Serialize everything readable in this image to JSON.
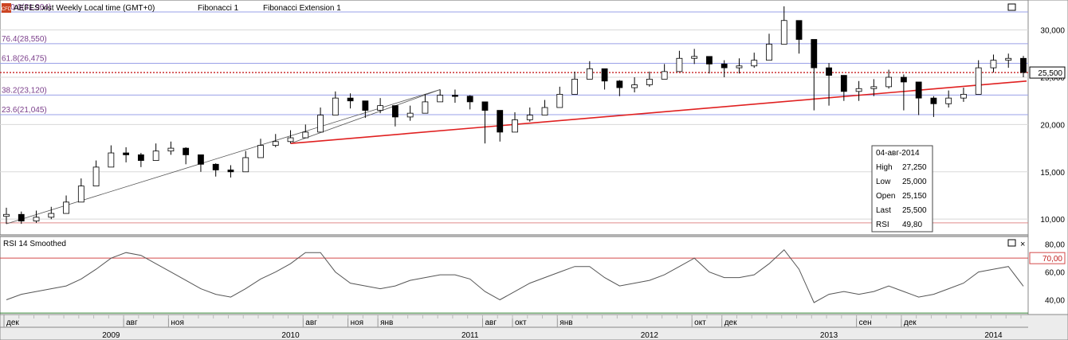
{
  "header": {
    "badge": "CFD",
    "title": "AEFES:xist Weekly Local time (GMT+0)",
    "fibonacci": "Fibonacci 1",
    "fib_extension": "Fibonacci Extension 1"
  },
  "rsi_header": {
    "title": "RSI 14 Smoothed"
  },
  "colors": {
    "candle_up": "#ffffff",
    "candle_down": "#000000",
    "trendline": "#e02020",
    "rsi_line": "#555555",
    "rsi_level": "#d44a4a",
    "fib_line": "#9aa0e8",
    "price_marker": "#cc3333"
  },
  "chart_data": [
    {
      "type": "candlestick",
      "title": "AEFES:xist Weekly",
      "ylim": [
        8500,
        33000
      ],
      "y_ticks": [
        "10,000",
        "15,000",
        "20,000",
        "25,000",
        "30,000"
      ],
      "y_tick_values": [
        10000,
        15000,
        20000,
        25000,
        30000
      ],
      "last_price_label": "25,500",
      "last_price": 25500,
      "fib_levels": [
        {
          "label": "100.0(31,904)",
          "value": 31904
        },
        {
          "label": "76.4(28,550)",
          "value": 28550
        },
        {
          "label": "61.8(26,475)",
          "value": 26475
        },
        {
          "label": "38.2(23,120)",
          "value": 23120
        },
        {
          "label": "23.6(21,045)",
          "value": 21045
        }
      ],
      "series": {
        "x": [
          "2008-12",
          "2009-01",
          "2009-02",
          "2009-03",
          "2009-04",
          "2009-05",
          "2009-06",
          "2009-07",
          "2009-08",
          "2009-09",
          "2009-10",
          "2009-11",
          "2009-12",
          "2010-01",
          "2010-02",
          "2010-03",
          "2010-04",
          "2010-05",
          "2010-06",
          "2010-07",
          "2010-08",
          "2010-09",
          "2010-10",
          "2010-11",
          "2010-12",
          "2011-01",
          "2011-02",
          "2011-03",
          "2011-04",
          "2011-05",
          "2011-06",
          "2011-07",
          "2011-08",
          "2011-09",
          "2011-10",
          "2011-11",
          "2011-12",
          "2012-01",
          "2012-02",
          "2012-03",
          "2012-04",
          "2012-05",
          "2012-06",
          "2012-07",
          "2012-08",
          "2012-09",
          "2012-10",
          "2012-11",
          "2012-12",
          "2013-01",
          "2013-02",
          "2013-03",
          "2013-04",
          "2013-05",
          "2013-06",
          "2013-07",
          "2013-08",
          "2013-09",
          "2013-10",
          "2013-11",
          "2013-12",
          "2014-01",
          "2014-02",
          "2014-03",
          "2014-04",
          "2014-05",
          "2014-06",
          "2014-07",
          "2014-08"
        ],
        "close": [
          10500,
          9800,
          10200,
          10600,
          11800,
          13500,
          15500,
          17000,
          16800,
          16200,
          17200,
          17500,
          16800,
          15800,
          15200,
          15000,
          16500,
          17800,
          18200,
          18600,
          19200,
          21000,
          22800,
          22500,
          21500,
          22000,
          20800,
          21200,
          22400,
          23100,
          23000,
          22400,
          21500,
          19200,
          20500,
          21000,
          21800,
          23200,
          24800,
          25900,
          24600,
          23900,
          24200,
          24800,
          25600,
          27000,
          27200,
          26400,
          26000,
          26200,
          26800,
          28500,
          31000,
          29000,
          26000,
          25200,
          23500,
          23800,
          24000,
          25000,
          24500,
          22800,
          22200,
          22800,
          23200,
          26000,
          26800,
          27000,
          25500
        ],
        "low": [
          9500,
          9500,
          9600,
          10000,
          11200,
          12800,
          14800,
          16300,
          16000,
          15500,
          16500,
          16800,
          15800,
          15000,
          14500,
          14400,
          15800,
          17000,
          17600,
          18000,
          18600,
          20300,
          22000,
          21700,
          20700,
          21200,
          19800,
          20400,
          21600,
          22400,
          22300,
          21600,
          18000,
          18200,
          19600,
          20300,
          21000,
          22500,
          24000,
          25000,
          23700,
          23000,
          23400,
          24000,
          24800,
          26200,
          26400,
          25400,
          25000,
          25400,
          26000,
          27500,
          30000,
          27500,
          21500,
          22000,
          22500,
          22500,
          23000,
          23800,
          21500,
          21000,
          20800,
          21800,
          22400,
          24800,
          25500,
          26000,
          25000
        ],
        "high": [
          11200,
          10800,
          10900,
          11300,
          12500,
          14300,
          16200,
          17800,
          17600,
          17000,
          18000,
          18200,
          17600,
          16600,
          15900,
          15700,
          17200,
          18500,
          19000,
          19400,
          20000,
          21800,
          23500,
          23300,
          22300,
          22800,
          21700,
          22000,
          23200,
          23700,
          23700,
          23100,
          22300,
          20200,
          21300,
          21800,
          22600,
          24000,
          25600,
          26700,
          25400,
          24700,
          25000,
          25600,
          26400,
          27800,
          28000,
          27200,
          26800,
          27000,
          27600,
          29600,
          32500,
          30800,
          27300,
          26500,
          24600,
          24600,
          24800,
          25800,
          25300,
          23600,
          23000,
          23600,
          23900,
          26800,
          27400,
          27500,
          27250
        ]
      }
    },
    {
      "type": "line",
      "title": "RSI 14 Smoothed",
      "ylim": [
        30,
        85
      ],
      "y_ticks": [
        "40,00",
        "60,00",
        "80,00"
      ],
      "y_tick_values": [
        40,
        60,
        80
      ],
      "level_label": "70,00",
      "level": 70,
      "last_value": 49.8,
      "values": [
        40,
        44,
        46,
        48,
        50,
        55,
        62,
        70,
        74,
        72,
        66,
        60,
        54,
        48,
        44,
        42,
        48,
        55,
        60,
        66,
        74,
        74,
        60,
        52,
        50,
        48,
        50,
        54,
        56,
        58,
        58,
        55,
        46,
        40,
        46,
        52,
        56,
        60,
        64,
        64,
        56,
        50,
        52,
        54,
        58,
        64,
        70,
        60,
        56,
        56,
        58,
        66,
        76,
        62,
        38,
        44,
        46,
        44,
        46,
        50,
        46,
        42,
        44,
        48,
        52,
        60,
        62,
        64,
        49.8
      ]
    }
  ],
  "x_axis": {
    "months": [
      {
        "label": "дек",
        "i": 0
      },
      {
        "label": "авг",
        "i": 8
      },
      {
        "label": "ноя",
        "i": 11
      },
      {
        "label": "авг",
        "i": 20
      },
      {
        "label": "ноя",
        "i": 23
      },
      {
        "label": "янв",
        "i": 25
      },
      {
        "label": "авг",
        "i": 32
      },
      {
        "label": "окт",
        "i": 34
      },
      {
        "label": "янв",
        "i": 37
      },
      {
        "label": "окт",
        "i": 46
      },
      {
        "label": "дек",
        "i": 48
      },
      {
        "label": "сен",
        "i": 57
      },
      {
        "label": "дек",
        "i": 60
      }
    ],
    "years": [
      {
        "label": "2009",
        "i": 7
      },
      {
        "label": "2010",
        "i": 19
      },
      {
        "label": "2011",
        "i": 31
      },
      {
        "label": "2012",
        "i": 43
      },
      {
        "label": "2013",
        "i": 55
      },
      {
        "label": "2014",
        "i": 66
      }
    ]
  },
  "info_box": {
    "date": "04-авг-2014",
    "rows": [
      {
        "label": "High",
        "value": "27,250"
      },
      {
        "label": "Low",
        "value": "25,000"
      },
      {
        "label": "Open",
        "value": "25,150"
      },
      {
        "label": "Last",
        "value": "25,500"
      },
      {
        "label": "RSI",
        "value": "49,80"
      }
    ]
  }
}
